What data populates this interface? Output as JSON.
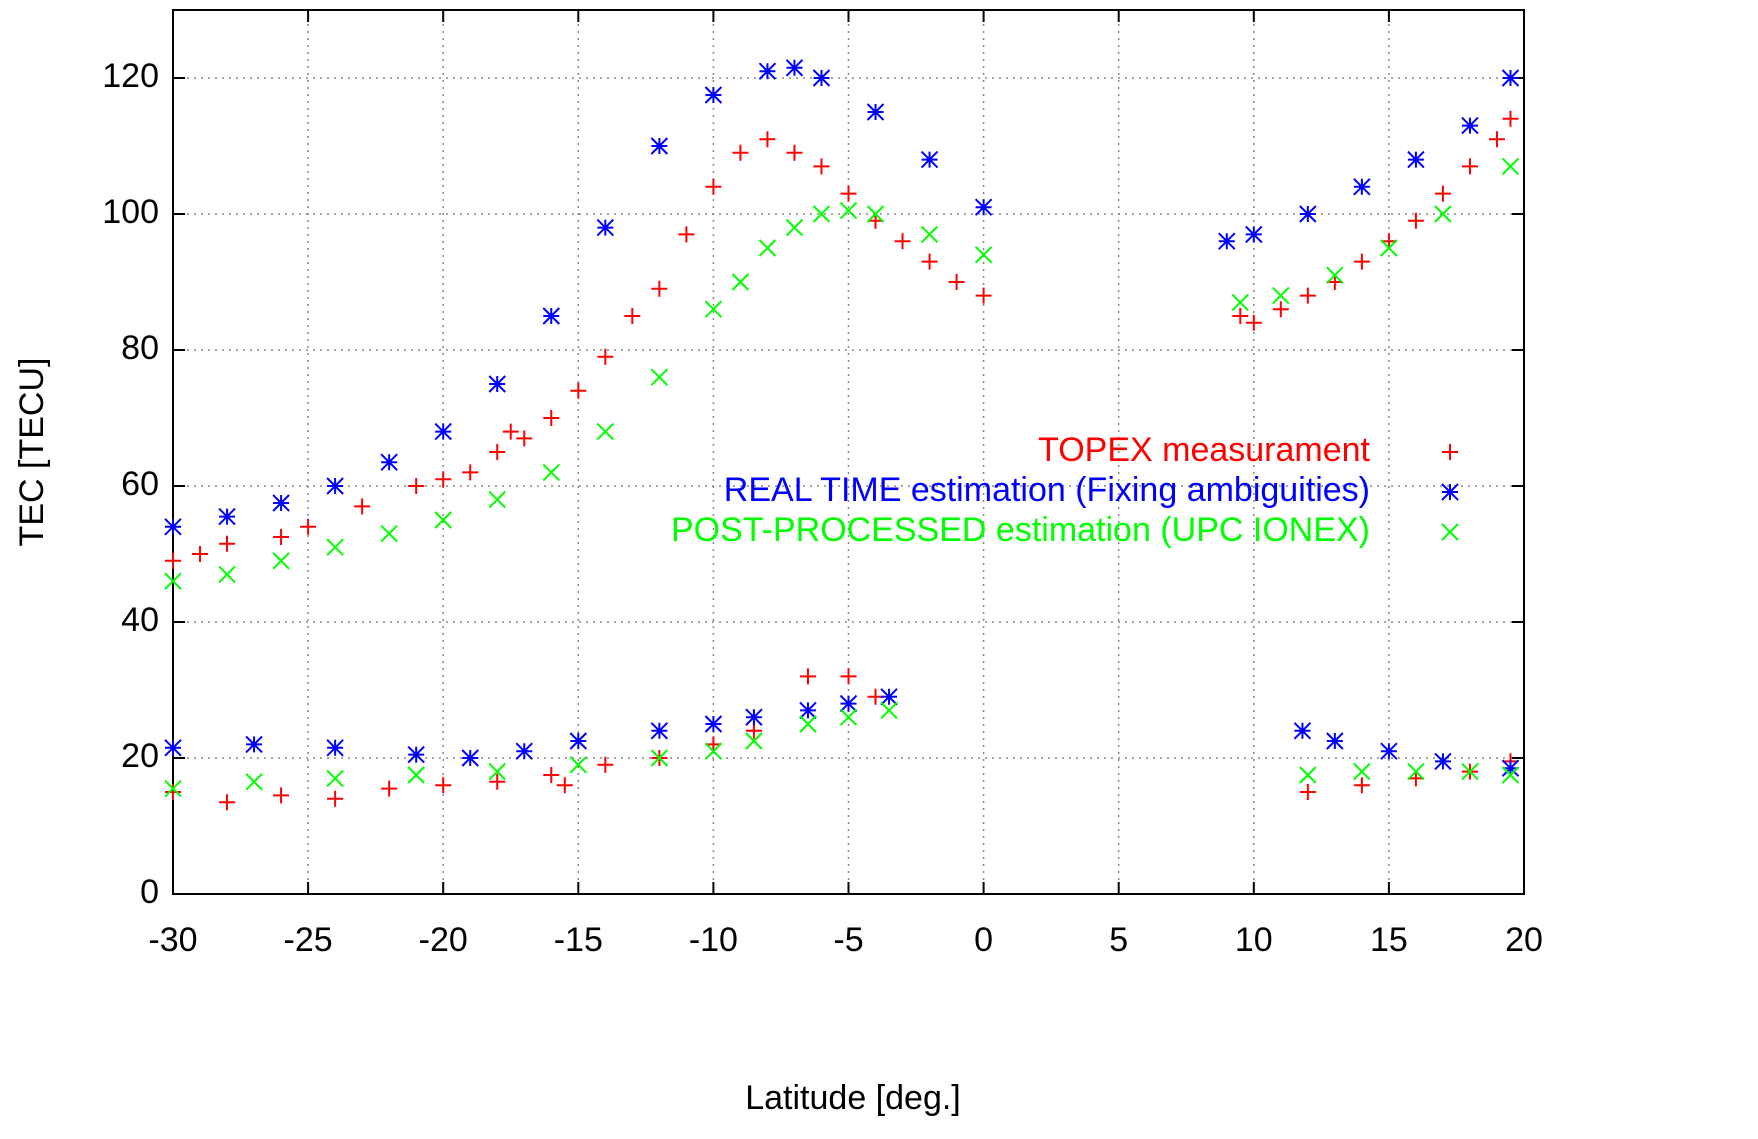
{
  "chart_data": {
    "type": "scatter",
    "x_label": "Latitude [deg.]",
    "y_label": "TEC [TECU]",
    "xlim": [
      -30,
      20
    ],
    "ylim": [
      0,
      130
    ],
    "xticks": [
      -30,
      -25,
      -20,
      -15,
      -10,
      -5,
      0,
      5,
      10,
      15,
      20
    ],
    "yticks": [
      0,
      20,
      40,
      60,
      80,
      100,
      120
    ],
    "grid": true,
    "legend": "right",
    "series": [
      {
        "name": "TOPEX measurament",
        "color": "#ff0000",
        "marker": "plus",
        "x": [
          -30,
          -29,
          -28,
          -26,
          -25,
          -23,
          -21,
          -20,
          -19,
          -18,
          -17.5,
          -17,
          -16,
          -15,
          -14,
          -13,
          -12,
          -11,
          -10,
          -9,
          -8,
          -7,
          -6,
          -5,
          -4,
          -3,
          -2,
          -1,
          0,
          9.5,
          10,
          11,
          12,
          13,
          14,
          15,
          16,
          17,
          18,
          19,
          19.5,
          -30,
          -28,
          -26,
          -24,
          -22,
          -20,
          -18,
          -16,
          -15.5,
          -14,
          -12,
          -10,
          -8.5,
          -6.5,
          -5,
          -4,
          12,
          14,
          16,
          18,
          19.5
        ],
        "values": [
          49,
          50,
          51.5,
          52.5,
          54,
          57,
          60,
          61,
          62,
          65,
          68,
          67,
          70,
          74,
          79,
          85,
          89,
          97,
          104,
          109,
          111,
          109,
          107,
          103,
          99,
          96,
          93,
          90,
          88,
          85,
          84,
          86,
          88,
          90,
          93,
          96,
          99,
          103,
          107,
          111,
          114,
          15,
          13.5,
          14.5,
          14,
          15.5,
          16,
          16.5,
          17.5,
          16,
          19,
          20,
          22,
          24,
          32,
          32,
          29,
          15,
          16,
          17,
          18,
          19.5
        ]
      },
      {
        "name": "REAL TIME estimation (Fixing ambiguities)",
        "color": "#0000ff",
        "marker": "star",
        "x": [
          -30,
          -28,
          -26,
          -24,
          -22,
          -20,
          -18,
          -16,
          -14,
          -12,
          -10,
          -8,
          -7,
          -6,
          -4,
          -2,
          0,
          9,
          10,
          12,
          14,
          16,
          18,
          19.5,
          -30,
          -27,
          -24,
          -21,
          -19,
          -17,
          -15,
          -12,
          -10,
          -8.5,
          -6.5,
          -5,
          -3.5,
          11.8,
          13,
          15,
          17,
          19.5
        ],
        "values": [
          54,
          55.5,
          57.5,
          60,
          63.5,
          68,
          75,
          85,
          98,
          110,
          117.5,
          121,
          121.5,
          120,
          115,
          108,
          101,
          96,
          97,
          100,
          104,
          108,
          113,
          120,
          21.5,
          22,
          21.5,
          20.5,
          20,
          21,
          22.5,
          24,
          25,
          26,
          27,
          28,
          29,
          24,
          22.5,
          21,
          19.5,
          18.5
        ]
      },
      {
        "name": "POST-PROCESSED estimation (UPC IONEX)",
        "color": "#00ff00",
        "marker": "cross",
        "x": [
          -30,
          -28,
          -26,
          -24,
          -22,
          -20,
          -18,
          -16,
          -14,
          -12,
          -10,
          -9,
          -8,
          -7,
          -6,
          -5,
          -4,
          -2,
          0,
          9.5,
          11,
          13,
          15,
          17,
          19.5,
          -30,
          -27,
          -24,
          -21,
          -18,
          -15,
          -12,
          -10,
          -8.5,
          -6.5,
          -5,
          -3.5,
          12,
          14,
          16,
          18,
          19.5
        ],
        "values": [
          46,
          47,
          49,
          51,
          53,
          55,
          58,
          62,
          68,
          76,
          86,
          90,
          95,
          98,
          100,
          100.5,
          100,
          97,
          94,
          87,
          88,
          91,
          95,
          100,
          107,
          15.5,
          16.5,
          17,
          17.5,
          18,
          19,
          20,
          21,
          22.5,
          25,
          26,
          27,
          17.5,
          18,
          18,
          18,
          17.5
        ]
      }
    ]
  }
}
